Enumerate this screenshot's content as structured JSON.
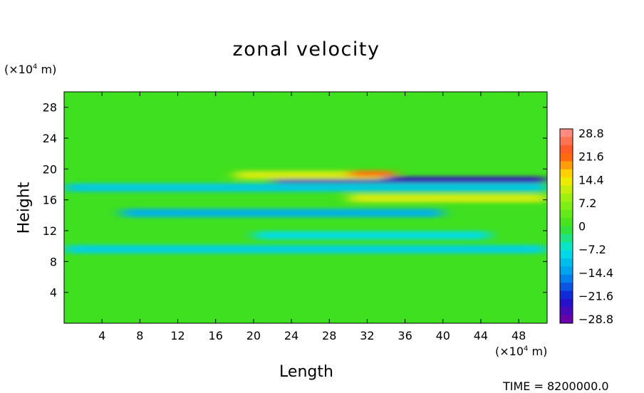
{
  "chart_data": {
    "type": "heatmap",
    "title": "zonal velocity",
    "xlabel": "Length",
    "ylabel": "Height",
    "x_unit": "(×10⁴ m)",
    "y_unit": "(×10⁴ m)",
    "xlim": [
      0,
      51
    ],
    "ylim": [
      0,
      30
    ],
    "x_ticks": [
      4,
      8,
      12,
      16,
      20,
      24,
      28,
      32,
      36,
      40,
      44,
      48
    ],
    "y_ticks": [
      4,
      8,
      12,
      16,
      20,
      24,
      28
    ],
    "colorbar": {
      "labels": [
        "28.8",
        "21.6",
        "14.4",
        "7.2",
        "0",
        "−7.2",
        "−14.4",
        "−21.6",
        "−28.8"
      ],
      "min": -28.8,
      "max": 28.8
    },
    "bands": [
      {
        "y_center": 18.6,
        "x_start": 22,
        "x_end": 51,
        "value": -24
      },
      {
        "y_center": 19.2,
        "x_start": 18,
        "x_end": 34,
        "value": 12
      },
      {
        "y_center": 19.4,
        "x_start": 30,
        "x_end": 35,
        "value": 20
      },
      {
        "y_center": 17.6,
        "x_start": 0,
        "x_end": 51,
        "value": -10
      },
      {
        "y_center": 16.2,
        "x_start": 30,
        "x_end": 51,
        "value": 12
      },
      {
        "y_center": 14.3,
        "x_start": 6,
        "x_end": 40,
        "value": -12
      },
      {
        "y_center": 11.4,
        "x_start": 20,
        "x_end": 45,
        "value": -8
      },
      {
        "y_center": 9.6,
        "x_start": 0,
        "x_end": 51,
        "value": -9
      }
    ],
    "time_label": "TIME = 8200000.0"
  }
}
